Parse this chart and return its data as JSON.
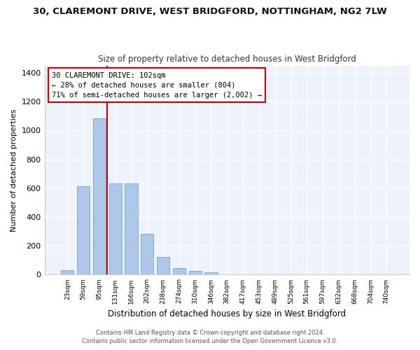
{
  "title": "30, CLAREMONT DRIVE, WEST BRIDGFORD, NOTTINGHAM, NG2 7LW",
  "subtitle": "Size of property relative to detached houses in West Bridgford",
  "xlabel": "Distribution of detached houses by size in West Bridgford",
  "ylabel": "Number of detached properties",
  "bar_color": "#aec6e8",
  "bar_edge_color": "#6fa8d5",
  "background_color": "#eef2fa",
  "grid_color": "#ffffff",
  "bins": [
    "23sqm",
    "59sqm",
    "95sqm",
    "131sqm",
    "166sqm",
    "202sqm",
    "238sqm",
    "274sqm",
    "310sqm",
    "346sqm",
    "382sqm",
    "417sqm",
    "453sqm",
    "489sqm",
    "525sqm",
    "561sqm",
    "597sqm",
    "632sqm",
    "668sqm",
    "704sqm",
    "740sqm"
  ],
  "values": [
    30,
    615,
    1085,
    635,
    635,
    285,
    125,
    45,
    25,
    15,
    0,
    0,
    0,
    0,
    0,
    0,
    0,
    0,
    0,
    0,
    0
  ],
  "ylim": [
    0,
    1450
  ],
  "yticks": [
    0,
    200,
    400,
    600,
    800,
    1000,
    1200,
    1400
  ],
  "property_line_x": 2.5,
  "property_line_color": "#cc0000",
  "annotation_text": "30 CLAREMONT DRIVE: 102sqm\n← 28% of detached houses are smaller (804)\n71% of semi-detached houses are larger (2,002) →",
  "annotation_box_color": "#ffffff",
  "annotation_box_edge_color": "#cc0000",
  "fig_background": "#ffffff",
  "footer_line1": "Contains HM Land Registry data © Crown copyright and database right 2024.",
  "footer_line2": "Contains public sector information licensed under the Open Government Licence v3.0."
}
